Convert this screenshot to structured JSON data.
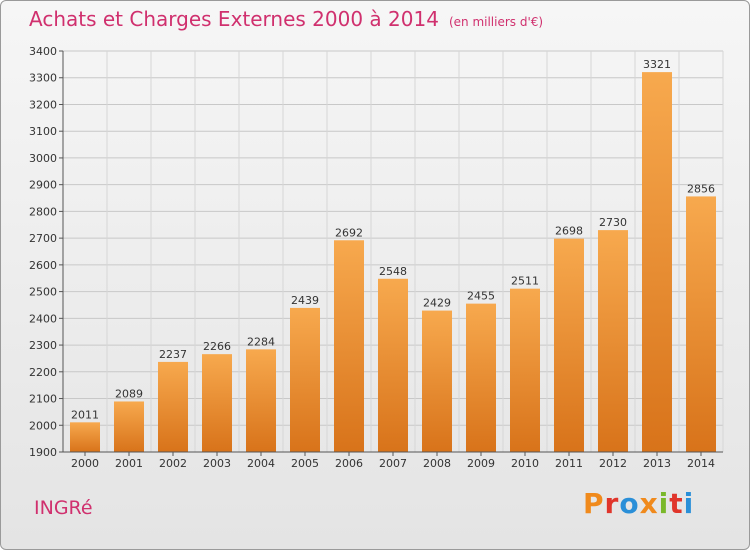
{
  "header": {
    "title": "Achats et Charges Externes 2000 à 2014",
    "subtitle": "(en milliers d'€)"
  },
  "footer": {
    "city": "INGRé",
    "logo": "Proxiti"
  },
  "colors": {
    "title": "#d0306e",
    "bar_top": "#f7a94e",
    "bar_bottom": "#d8731a",
    "logo_letters": [
      "#f08a1c",
      "#e0352b",
      "#2a8fd8",
      "#f08a1c",
      "#7ab82a",
      "#e0352b",
      "#2a8fd8"
    ]
  },
  "chart_data": {
    "type": "bar",
    "title": "Achats et Charges Externes 2000 à 2014",
    "subtitle": "(en milliers d'€)",
    "categories": [
      "2000",
      "2001",
      "2002",
      "2003",
      "2004",
      "2005",
      "2006",
      "2007",
      "2008",
      "2009",
      "2010",
      "2011",
      "2012",
      "2013",
      "2014"
    ],
    "values": [
      2011,
      2089,
      2237,
      2266,
      2284,
      2439,
      2692,
      2548,
      2429,
      2455,
      2511,
      2698,
      2730,
      3321,
      2856
    ],
    "xlabel": "",
    "ylabel": "",
    "ylim": [
      1900,
      3400
    ],
    "yticks": [
      1900,
      2000,
      2100,
      2200,
      2300,
      2400,
      2500,
      2600,
      2700,
      2800,
      2900,
      3000,
      3100,
      3200,
      3300,
      3400
    ],
    "grid": true,
    "data_labels": true
  }
}
